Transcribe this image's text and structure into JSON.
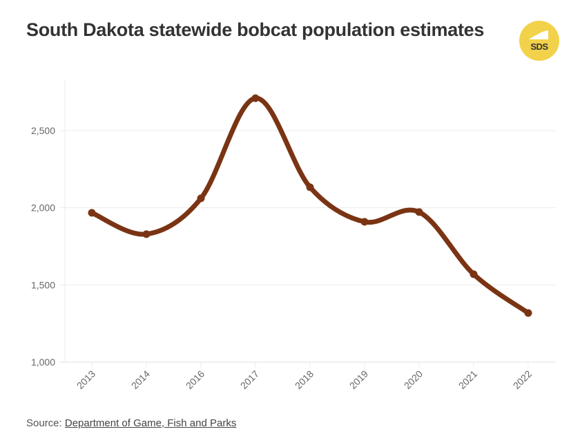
{
  "title": "South Dakota statewide bobcat population estimates",
  "logo": {
    "text": "SDS",
    "icon": "sds-logo-icon",
    "color": "#f2d24a"
  },
  "source": {
    "prefix": "Source: ",
    "link_text": "Department of Game, Fish and Parks"
  },
  "colors": {
    "line": "#7a3413",
    "grid": "#ececec",
    "axis_text": "#666666"
  },
  "chart_data": {
    "type": "line",
    "title": "South Dakota statewide bobcat population estimates",
    "xlabel": "",
    "ylabel": "",
    "categories": [
      "2013",
      "2014",
      "2016",
      "2017",
      "2018",
      "2019",
      "2020",
      "2021",
      "2022"
    ],
    "values": [
      1967,
      1829,
      2061,
      2710,
      2133,
      1909,
      1972,
      1569,
      1318
    ],
    "ylim": [
      1000,
      2800
    ],
    "yticks": [
      "1,000",
      "1,500",
      "2,000",
      "2,500"
    ],
    "ytick_values": [
      1000,
      1500,
      2000,
      2500
    ],
    "grid": true,
    "smooth": true,
    "markers": true,
    "legend": null
  }
}
